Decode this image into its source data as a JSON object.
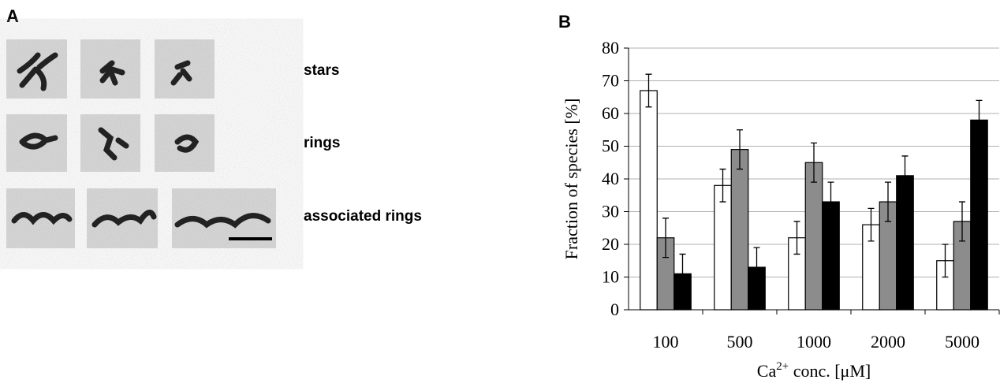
{
  "panel_a": {
    "label": "A",
    "rows": [
      "stars",
      "rings",
      "associated rings"
    ]
  },
  "chart_data": {
    "type": "bar",
    "panel_label": "B",
    "ylabel": "Fraction of species [%]",
    "xlabel": {
      "base": "Ca",
      "sup": "2+",
      "rest": " conc. [μM]"
    },
    "categories": [
      "100",
      "500",
      "1000",
      "2000",
      "5000"
    ],
    "series": [
      {
        "color": "#ffffff",
        "values": [
          67,
          38,
          22,
          26,
          15
        ],
        "errors": [
          5,
          5,
          5,
          5,
          5
        ]
      },
      {
        "color": "#8c8c8c",
        "values": [
          22,
          49,
          45,
          33,
          27
        ],
        "errors": [
          6,
          6,
          6,
          6,
          6
        ]
      },
      {
        "color": "#000000",
        "values": [
          11,
          13,
          33,
          41,
          58
        ],
        "errors": [
          6,
          6,
          6,
          6,
          6
        ]
      }
    ],
    "ylim": [
      0,
      80
    ],
    "yticks": [
      0,
      10,
      20,
      30,
      40,
      50,
      60,
      70,
      80
    ],
    "grid": true
  }
}
